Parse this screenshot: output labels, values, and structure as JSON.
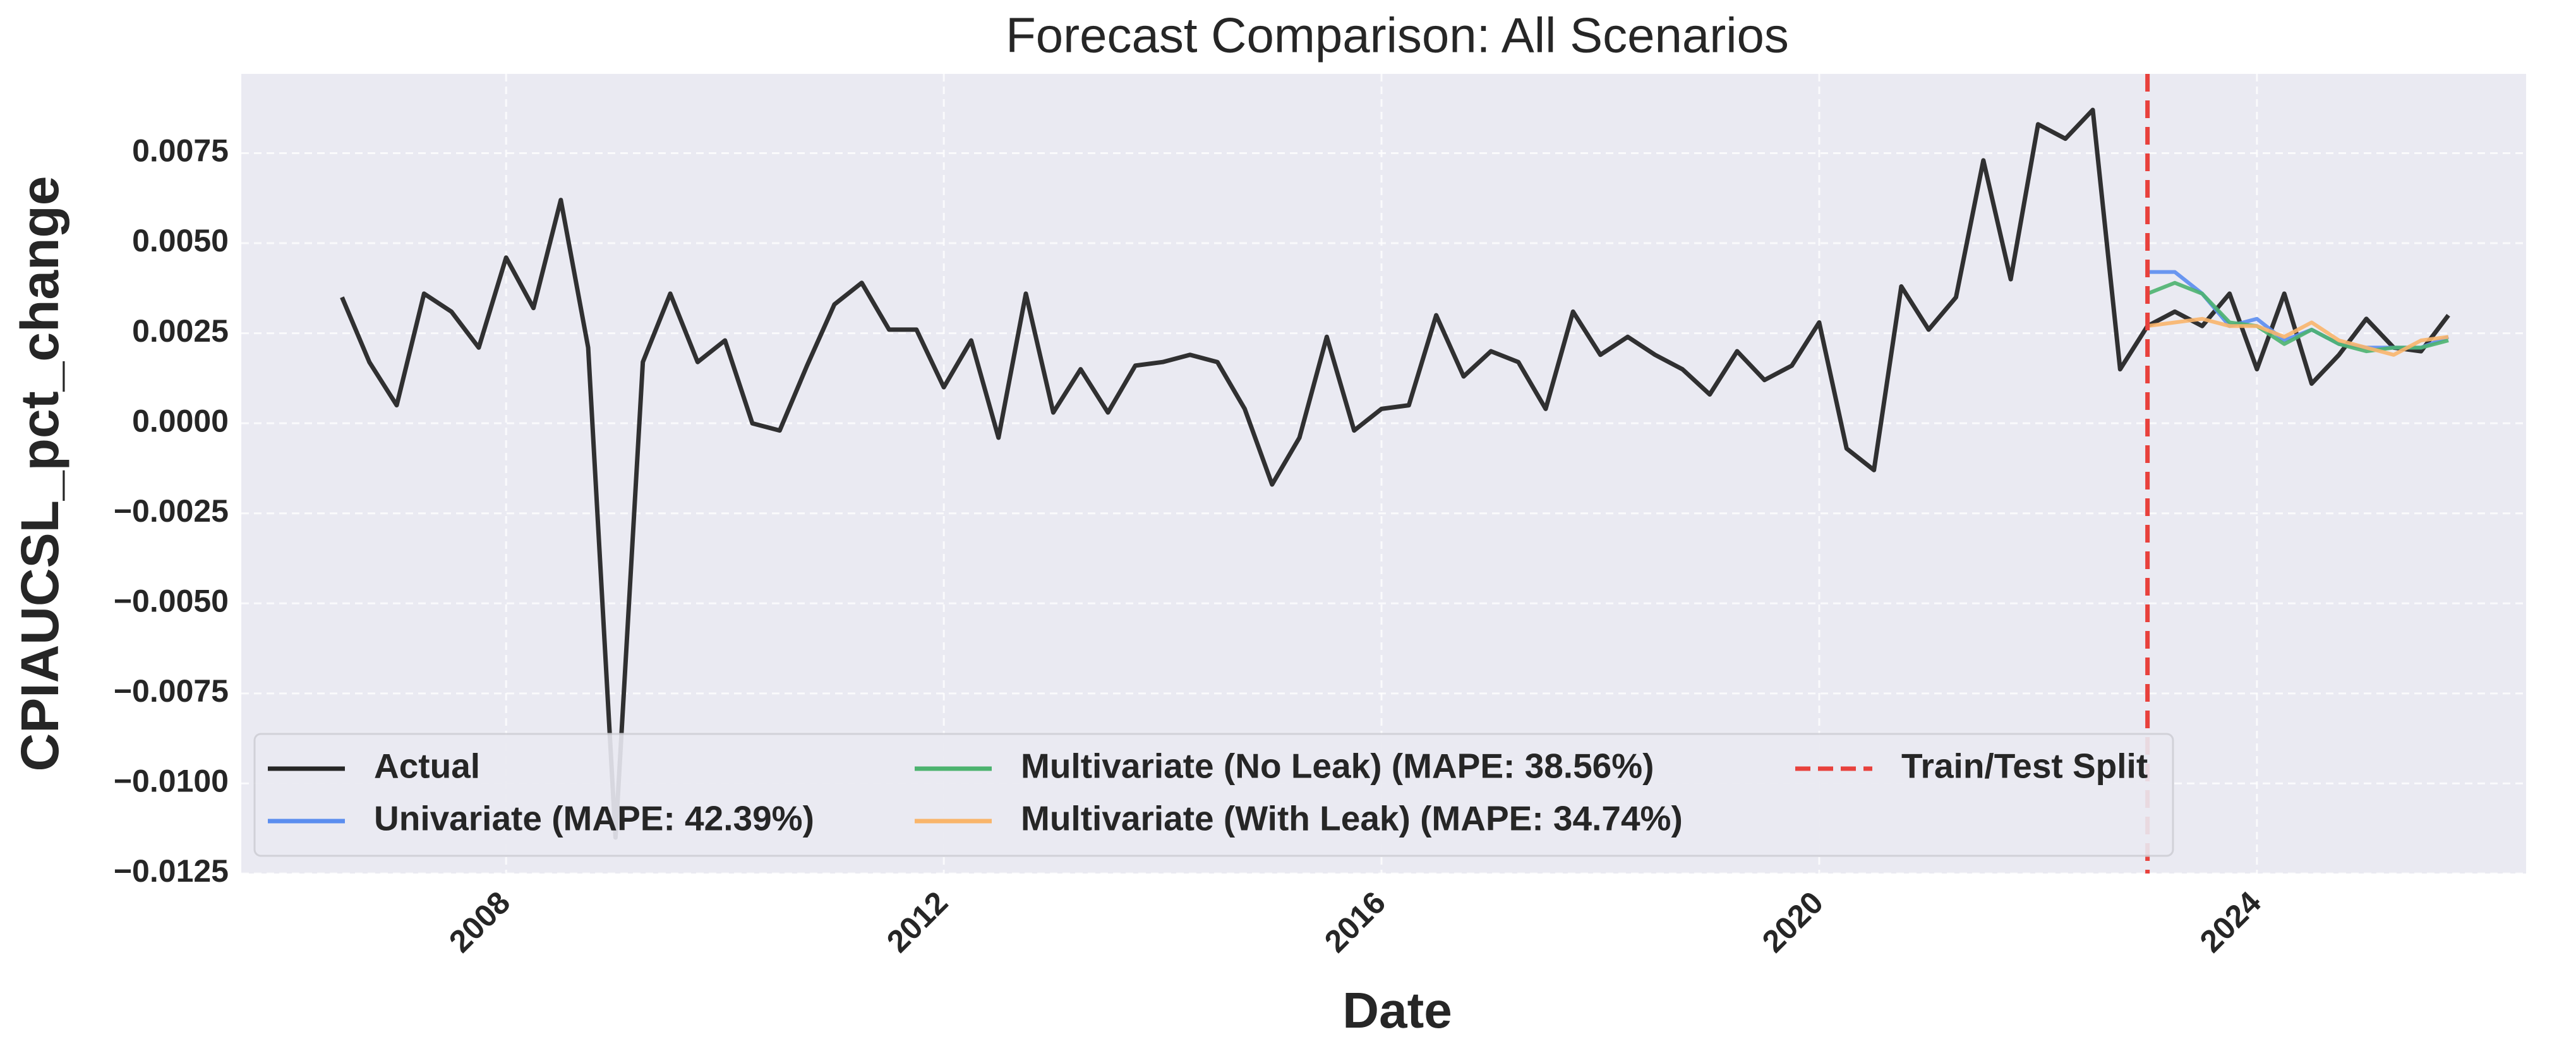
{
  "chart_data": {
    "type": "line",
    "title": "Forecast Comparison: All Scenarios",
    "x_label": "Date",
    "y_label": "CPIAUCSL_pct_change",
    "grid": true,
    "legend": "lower left",
    "xlim": [
      2005.58,
      2026.46
    ],
    "xticks": [
      2008,
      2012,
      2016,
      2020,
      2024
    ],
    "ylim": [
      -0.0125,
      0.0097
    ],
    "yticks": [
      {
        "value": -0.0125,
        "label": "−0.0125"
      },
      {
        "value": -0.01,
        "label": "−0.0100"
      },
      {
        "value": -0.0075,
        "label": "−0.0075"
      },
      {
        "value": -0.005,
        "label": "−0.0050"
      },
      {
        "value": -0.0025,
        "label": "−0.0025"
      },
      {
        "value": 0,
        "label": "0.0000"
      },
      0.0025,
      {
        "value": 0.005,
        "label": "0.0050"
      },
      0.0075
    ],
    "series": [
      {
        "name": "Actual",
        "color": "#262626",
        "x": [
          2006.5,
          2006.75,
          2007,
          2007.25,
          2007.5,
          2007.75,
          2008,
          2008.25,
          2008.5,
          2008.75,
          2009,
          2009.25,
          2009.5,
          2009.75,
          2010,
          2010.25,
          2010.5,
          2010.75,
          2011,
          2011.25,
          2011.5,
          2011.75,
          2012,
          2012.25,
          2012.5,
          2012.75,
          2013,
          2013.25,
          2013.5,
          2013.75,
          2014,
          2014.25,
          2014.5,
          2014.75,
          2015,
          2015.25,
          2015.5,
          2015.75,
          2016,
          2016.25,
          2016.5,
          2016.75,
          2017,
          2017.25,
          2017.5,
          2017.75,
          2018,
          2018.25,
          2018.5,
          2018.75,
          2019,
          2019.25,
          2019.5,
          2019.75,
          2020,
          2020.25,
          2020.5,
          2020.75,
          2021,
          2021.25,
          2021.5,
          2021.75,
          2022,
          2022.25,
          2022.5,
          2022.75,
          2023,
          2023.25,
          2023.5,
          2023.75,
          2024,
          2024.25,
          2024.5,
          2024.75,
          2025,
          2025.25,
          2025.5,
          2025.75
        ],
        "values": [
          0.0035,
          0.0017,
          0.0005,
          0.0036,
          0.0031,
          0.0021,
          0.0046,
          0.0032,
          0.0062,
          0.0021,
          -0.0115,
          0.0017,
          0.0036,
          0.0017,
          0.0023,
          0.0,
          -0.0002,
          0.0016,
          0.0033,
          0.0039,
          0.0026,
          0.0026,
          0.001,
          0.0023,
          -0.0004,
          0.0036,
          0.0003,
          0.0015,
          0.0003,
          0.0016,
          0.0017,
          0.0019,
          0.0017,
          0.0004,
          -0.0017,
          -0.0004,
          0.0024,
          -0.0002,
          0.0004,
          0.0005,
          0.003,
          0.0013,
          0.002,
          0.0017,
          0.0004,
          0.0031,
          0.0019,
          0.0024,
          0.0019,
          0.0015,
          0.0008,
          0.002,
          0.0012,
          0.0016,
          0.0028,
          -0.0007,
          -0.0013,
          0.0038,
          0.0026,
          0.0035,
          0.0073,
          0.004,
          0.0083,
          0.0079,
          0.0087,
          0.0015,
          0.0027,
          0.0031,
          0.0027,
          0.0036,
          0.0015,
          0.0036,
          0.0011,
          0.0019,
          0.0029,
          0.0021,
          0.002,
          0.003
        ]
      },
      {
        "name": "Univariate (MAPE: 42.39%)",
        "color": "#5b8def",
        "x": [
          2023,
          2023.25,
          2023.5,
          2023.75,
          2024,
          2024.25,
          2024.5,
          2024.75,
          2025,
          2025.25,
          2025.5,
          2025.75
        ],
        "values": [
          0.0042,
          0.0042,
          0.0036,
          0.0027,
          0.0029,
          0.0023,
          0.0026,
          0.0022,
          0.0021,
          0.0021,
          0.0021,
          0.0024
        ]
      },
      {
        "name": "Multivariate (No Leak) (MAPE: 38.56%)",
        "color": "#4cb36f",
        "x": [
          2023,
          2023.25,
          2023.5,
          2023.75,
          2024,
          2024.25,
          2024.5,
          2024.75,
          2025,
          2025.25,
          2025.5,
          2025.75
        ],
        "values": [
          0.0036,
          0.0039,
          0.0036,
          0.0028,
          0.0027,
          0.0022,
          0.0026,
          0.0022,
          0.002,
          0.0021,
          0.0021,
          0.0023
        ]
      },
      {
        "name": "Multivariate (With Leak) (MAPE: 34.74%)",
        "color": "#f9b56b",
        "x": [
          2023,
          2023.25,
          2023.5,
          2023.75,
          2024,
          2024.25,
          2024.5,
          2024.75,
          2025,
          2025.25,
          2025.5,
          2025.75
        ],
        "values": [
          0.0027,
          0.0028,
          0.0029,
          0.0027,
          0.0027,
          0.0024,
          0.0028,
          0.0023,
          0.0021,
          0.0019,
          0.0023,
          0.0024
        ]
      }
    ],
    "vline": {
      "name": "Train/Test Split",
      "x": 2023.0,
      "color": "#e8413c"
    }
  }
}
